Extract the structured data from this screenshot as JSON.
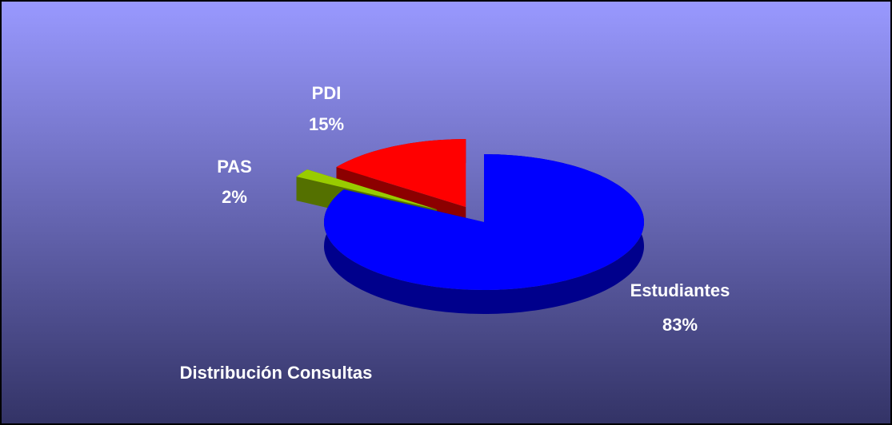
{
  "chart_data": {
    "type": "pie",
    "title": "Distribución Consultas",
    "categories": [
      "Estudiantes",
      "PAS",
      "PDI"
    ],
    "values": [
      83,
      2,
      15
    ],
    "value_labels": [
      "83%",
      "2%",
      "15%"
    ],
    "colors": [
      "#0000ff",
      "#99cc00",
      "#ff0000"
    ]
  }
}
